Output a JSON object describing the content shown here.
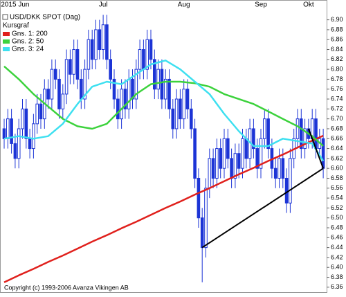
{
  "chart_data": {
    "type": "candlestick",
    "title": "USD/DKK SPOT (Dag)",
    "footer": "Copyright (c) 1993-2006 Avanza Vikingen AB",
    "categories": [
      null,
      null,
      null,
      "2015 Jun",
      null,
      null,
      null,
      null,
      null,
      null,
      null,
      null,
      null,
      null,
      null,
      null,
      null,
      null,
      null,
      null,
      null,
      null,
      null,
      null,
      null,
      null,
      null,
      "Jul",
      null,
      null,
      null,
      null,
      null,
      null,
      null,
      null,
      null,
      null,
      null,
      null,
      null,
      null,
      null,
      null,
      null,
      null,
      null,
      null,
      null,
      "Aug",
      null,
      null,
      null,
      null,
      null,
      null,
      null,
      null,
      null,
      null,
      null,
      null,
      null,
      null,
      null,
      null,
      null,
      null,
      null,
      null,
      "Sep",
      null,
      null,
      null,
      null,
      null,
      null,
      null,
      null,
      null,
      null,
      null,
      null,
      "Okt",
      null,
      null,
      null,
      null
    ],
    "series": [
      {
        "name": "Kursgraf",
        "color": "#1c34d6",
        "open": [
          6.68,
          6.66,
          6.7,
          6.65,
          6.62,
          6.68,
          6.72,
          6.66,
          6.64,
          6.69,
          6.73,
          6.7,
          6.76,
          6.74,
          6.8,
          6.78,
          6.72,
          6.75,
          6.82,
          6.79,
          6.84,
          6.78,
          6.74,
          6.8,
          6.86,
          6.82,
          6.88,
          6.84,
          6.89,
          6.82,
          6.78,
          6.74,
          6.7,
          6.76,
          6.72,
          6.78,
          6.74,
          6.8,
          6.84,
          6.8,
          6.86,
          6.82,
          6.76,
          6.8,
          6.74,
          6.78,
          6.72,
          6.68,
          6.74,
          6.7,
          6.76,
          6.72,
          6.68,
          6.58,
          6.5,
          6.44,
          6.56,
          6.62,
          6.58,
          6.64,
          6.6,
          6.66,
          6.62,
          6.58,
          6.63,
          6.6,
          6.66,
          6.62,
          6.68,
          6.64,
          6.6,
          6.66,
          6.7,
          6.64,
          6.6,
          6.58,
          6.62,
          6.58,
          6.53,
          6.62,
          6.66,
          6.7,
          6.64,
          6.68,
          6.66,
          6.7,
          6.64,
          6.66
        ],
        "high": [
          6.7,
          6.72,
          6.72,
          6.67,
          6.7,
          6.74,
          6.74,
          6.68,
          6.71,
          6.75,
          6.75,
          6.78,
          6.78,
          6.82,
          6.82,
          6.8,
          6.77,
          6.84,
          6.84,
          6.86,
          6.86,
          6.8,
          6.82,
          6.88,
          6.88,
          6.9,
          6.9,
          6.91,
          6.91,
          6.84,
          6.8,
          6.76,
          6.78,
          6.78,
          6.8,
          6.8,
          6.82,
          6.86,
          6.86,
          6.88,
          6.88,
          6.84,
          6.82,
          6.82,
          6.8,
          6.8,
          6.74,
          6.76,
          6.76,
          6.78,
          6.78,
          6.74,
          6.7,
          6.6,
          6.52,
          6.58,
          6.64,
          6.64,
          6.66,
          6.66,
          6.68,
          6.68,
          6.64,
          6.65,
          6.65,
          6.68,
          6.68,
          6.7,
          6.7,
          6.66,
          6.68,
          6.72,
          6.72,
          6.66,
          6.62,
          6.64,
          6.64,
          6.6,
          6.64,
          6.68,
          6.72,
          6.72,
          6.7,
          6.7,
          6.72,
          6.72,
          6.68,
          6.68
        ],
        "low": [
          6.64,
          6.64,
          6.63,
          6.6,
          6.6,
          6.66,
          6.64,
          6.62,
          6.62,
          6.67,
          6.68,
          6.68,
          6.72,
          6.72,
          6.76,
          6.7,
          6.7,
          6.73,
          6.77,
          6.77,
          6.76,
          6.72,
          6.72,
          6.78,
          6.8,
          6.8,
          6.82,
          6.82,
          6.8,
          6.76,
          6.72,
          6.68,
          6.68,
          6.7,
          6.7,
          6.72,
          6.72,
          6.78,
          6.78,
          6.78,
          6.8,
          6.74,
          6.74,
          6.72,
          6.72,
          6.7,
          6.66,
          6.66,
          6.68,
          6.68,
          6.7,
          6.66,
          6.56,
          6.48,
          6.37,
          6.42,
          6.54,
          6.56,
          6.56,
          6.58,
          6.58,
          6.6,
          6.56,
          6.56,
          6.58,
          6.58,
          6.6,
          6.6,
          6.62,
          6.58,
          6.58,
          6.64,
          6.62,
          6.58,
          6.56,
          6.56,
          6.56,
          6.51,
          6.51,
          6.6,
          6.64,
          6.62,
          6.62,
          6.64,
          6.64,
          6.62,
          6.62,
          6.58
        ],
        "close": [
          6.66,
          6.7,
          6.65,
          6.62,
          6.68,
          6.72,
          6.66,
          6.64,
          6.69,
          6.73,
          6.7,
          6.76,
          6.74,
          6.8,
          6.78,
          6.72,
          6.75,
          6.82,
          6.79,
          6.84,
          6.78,
          6.74,
          6.8,
          6.86,
          6.82,
          6.88,
          6.84,
          6.89,
          6.82,
          6.78,
          6.74,
          6.7,
          6.76,
          6.72,
          6.78,
          6.74,
          6.8,
          6.84,
          6.8,
          6.86,
          6.82,
          6.76,
          6.8,
          6.74,
          6.78,
          6.72,
          6.68,
          6.74,
          6.7,
          6.76,
          6.72,
          6.68,
          6.58,
          6.5,
          6.44,
          6.56,
          6.62,
          6.58,
          6.64,
          6.6,
          6.66,
          6.62,
          6.58,
          6.63,
          6.6,
          6.66,
          6.62,
          6.68,
          6.64,
          6.6,
          6.66,
          6.7,
          6.64,
          6.6,
          6.58,
          6.62,
          6.58,
          6.53,
          6.62,
          6.66,
          6.7,
          6.64,
          6.68,
          6.66,
          6.7,
          6.64,
          6.66,
          6.6
        ]
      }
    ],
    "lines": [
      {
        "name": "Gns. 1: 200",
        "color": "#e0201c",
        "x": [
          0,
          4,
          8,
          12,
          16,
          20,
          24,
          28,
          32,
          36,
          40,
          44,
          48,
          52,
          56,
          60,
          64,
          68,
          72,
          76,
          80,
          84,
          87
        ],
        "values": [
          6.37,
          6.384,
          6.397,
          6.411,
          6.424,
          6.438,
          6.452,
          6.465,
          6.479,
          6.492,
          6.506,
          6.52,
          6.533,
          6.547,
          6.56,
          6.574,
          6.588,
          6.601,
          6.615,
          6.628,
          6.642,
          6.656,
          6.666
        ]
      },
      {
        "name": "Gns. 2: 50",
        "color": "#3cd23c",
        "x": [
          0,
          4,
          8,
          12,
          16,
          20,
          24,
          28,
          32,
          36,
          40,
          44,
          48,
          52,
          56,
          60,
          64,
          68,
          72,
          76,
          80,
          84,
          87
        ],
        "values": [
          6.806,
          6.78,
          6.75,
          6.725,
          6.7,
          6.685,
          6.68,
          6.69,
          6.72,
          6.75,
          6.77,
          6.775,
          6.775,
          6.772,
          6.765,
          6.75,
          6.74,
          6.73,
          6.715,
          6.7,
          6.685,
          6.665,
          6.645
        ]
      },
      {
        "name": "Gns. 3: 24",
        "color": "#3ee0f0",
        "x": [
          0,
          4,
          8,
          12,
          16,
          20,
          24,
          28,
          32,
          36,
          40,
          44,
          48,
          52,
          56,
          60,
          64,
          68,
          72,
          76,
          80,
          84,
          87
        ],
        "values": [
          6.66,
          6.665,
          6.66,
          6.665,
          6.69,
          6.73,
          6.765,
          6.775,
          6.77,
          6.79,
          6.81,
          6.818,
          6.8,
          6.775,
          6.75,
          6.71,
          6.675,
          6.645,
          6.645,
          6.66,
          6.655,
          6.65,
          6.615
        ]
      }
    ],
    "trendlines": [
      {
        "color": "#000000",
        "x": [
          54,
          87
        ],
        "values": [
          6.44,
          6.6
        ]
      },
      {
        "color": "#000000",
        "x": [
          83,
          87
        ],
        "values": [
          6.68,
          6.6
        ]
      }
    ],
    "ylim": [
      6.35,
      6.94
    ],
    "yticks": [
      6.36,
      6.38,
      {
        "value": 6.4,
        "label": "6.40"
      },
      6.42,
      6.44,
      6.46,
      6.48,
      {
        "value": 6.5,
        "label": "6.50"
      },
      6.52,
      6.54,
      6.56,
      6.58,
      {
        "value": 6.6,
        "label": "6.60"
      },
      6.62,
      6.64,
      6.66,
      6.68,
      {
        "value": 6.7,
        "label": "6.70"
      },
      6.72,
      6.74,
      6.76,
      6.78,
      {
        "value": 6.8,
        "label": "6.80"
      },
      6.82,
      6.84,
      6.86,
      6.88,
      {
        "value": 6.9,
        "label": "6.90"
      }
    ],
    "grid": false
  }
}
